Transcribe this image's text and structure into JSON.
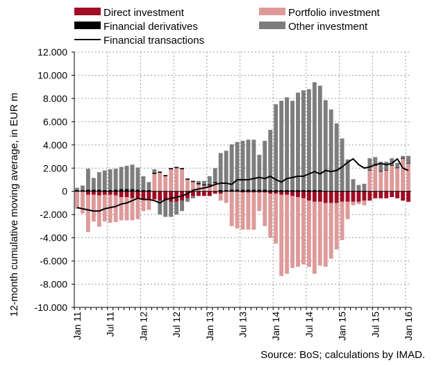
{
  "chart_data": {
    "type": "bar",
    "stacked": true,
    "ylabel": "12-month cumulative moving average, in EUR m",
    "source": "Source: BoS; calculations by IMAD.",
    "ylim": [
      -10000,
      12000
    ],
    "yticks": [
      12000,
      10000,
      8000,
      6000,
      4000,
      2000,
      0,
      -2000,
      -4000,
      -6000,
      -8000,
      -10000
    ],
    "ytick_labels": [
      "12.000",
      "10.000",
      "8.000",
      "6.000",
      "4.000",
      "2.000",
      "0",
      "-2.000",
      "-4.000",
      "-6.000",
      "-8.000",
      "-10.000"
    ],
    "grid": true,
    "legend_position": "top",
    "x": [
      "Jan 11",
      "Feb 11",
      "Mar 11",
      "Apr 11",
      "May 11",
      "Jun 11",
      "Jul 11",
      "Aug 11",
      "Sep 11",
      "Oct 11",
      "Nov 11",
      "Dec 11",
      "Jan 12",
      "Feb 12",
      "Mar 12",
      "Apr 12",
      "May 12",
      "Jun 12",
      "Jul 12",
      "Aug 12",
      "Sep 12",
      "Oct 12",
      "Nov 12",
      "Dec 12",
      "Jan 13",
      "Feb 13",
      "Mar 13",
      "Apr 13",
      "May 13",
      "Jun 13",
      "Jul 13",
      "Aug 13",
      "Sep 13",
      "Oct 13",
      "Nov 13",
      "Dec 13",
      "Jan 14",
      "Feb 14",
      "Mar 14",
      "Apr 14",
      "May 14",
      "Jun 14",
      "Jul 14",
      "Aug 14",
      "Sep 14",
      "Oct 14",
      "Nov 14",
      "Dec 14",
      "Jan 15",
      "Feb 15",
      "Mar 15",
      "Apr 15",
      "May 15",
      "Jun 15",
      "Jul 15",
      "Aug 15",
      "Sep 15",
      "Oct 15",
      "Nov 15",
      "Dec 15",
      "Jan 16"
    ],
    "xtick_labels": [
      {
        "index": 0,
        "label": "Jan 11"
      },
      {
        "index": 6,
        "label": "Jul 11"
      },
      {
        "index": 12,
        "label": "Jan 12"
      },
      {
        "index": 18,
        "label": "Jul 12"
      },
      {
        "index": 24,
        "label": "Jan 13"
      },
      {
        "index": 30,
        "label": "Jul 13"
      },
      {
        "index": 36,
        "label": "Jan 14"
      },
      {
        "index": 42,
        "label": "Jul 14"
      },
      {
        "index": 48,
        "label": "Jan 15"
      },
      {
        "index": 54,
        "label": "Jul 15"
      },
      {
        "index": 60,
        "label": "Jan 16"
      }
    ],
    "series": [
      {
        "name": "Direct investment",
        "color": "#a00d24",
        "kind": "bar",
        "values": [
          0,
          0,
          -300,
          -300,
          -350,
          -300,
          -300,
          -350,
          -500,
          -500,
          -600,
          -600,
          -700,
          -700,
          -700,
          -800,
          -800,
          -900,
          -900,
          -800,
          -600,
          -400,
          -400,
          -400,
          -400,
          -200,
          -200,
          0,
          0,
          0,
          -100,
          -100,
          -100,
          -100,
          -100,
          -200,
          -200,
          -300,
          -300,
          -400,
          -500,
          -600,
          -800,
          -900,
          -900,
          -1000,
          -1000,
          -1000,
          -900,
          -900,
          -900,
          -900,
          -800,
          -800,
          -600,
          -600,
          -600,
          -500,
          -600,
          -800,
          -900
        ]
      },
      {
        "name": "Portfolio investment",
        "color": "#de9a9a",
        "kind": "bar",
        "values": [
          -1500,
          -1900,
          -3200,
          -2300,
          -2700,
          -2300,
          -2400,
          -2300,
          -2000,
          -2000,
          -1900,
          -1800,
          -1000,
          -900,
          1500,
          1600,
          1300,
          1900,
          2000,
          1900,
          1000,
          800,
          600,
          500,
          500,
          700,
          -600,
          -1000,
          -3000,
          -3200,
          -3200,
          -3200,
          -3200,
          -1600,
          -2900,
          -3800,
          -4300,
          -7000,
          -6800,
          -6200,
          -6000,
          -5700,
          -5700,
          -6200,
          -5500,
          -5500,
          -4800,
          -4000,
          -3300,
          -1500,
          -300,
          -200,
          -400,
          1800,
          2200,
          1700,
          1800,
          2200,
          2000,
          2800,
          2400
        ]
      },
      {
        "name": "Financial derivatives",
        "color": "#000000",
        "kind": "bar",
        "values": [
          100,
          100,
          150,
          150,
          150,
          100,
          100,
          150,
          200,
          200,
          200,
          150,
          100,
          100,
          100,
          100,
          100,
          100,
          100,
          100,
          100,
          100,
          100,
          100,
          100,
          100,
          100,
          100,
          150,
          150,
          150,
          150,
          150,
          150,
          150,
          100,
          100,
          100,
          100,
          100,
          100,
          100,
          100,
          100,
          100,
          50,
          50,
          50,
          50,
          50,
          50,
          50,
          50,
          50,
          50,
          50,
          50,
          50,
          50,
          50,
          50
        ]
      },
      {
        "name": "Other investment",
        "color": "#7d7d7d",
        "kind": "bar",
        "values": [
          200,
          400,
          1800,
          1000,
          1500,
          1700,
          1800,
          1800,
          1900,
          2000,
          2100,
          1900,
          1200,
          700,
          300,
          -1200,
          -1400,
          -1300,
          -1100,
          -900,
          -300,
          -200,
          200,
          300,
          700,
          1200,
          3200,
          3400,
          3900,
          4100,
          4200,
          4300,
          4300,
          3000,
          4200,
          5200,
          7400,
          7700,
          8000,
          7700,
          8400,
          8600,
          8700,
          9300,
          9000,
          7800,
          7000,
          5800,
          4500,
          2700,
          1000,
          500,
          600,
          1000,
          700,
          800,
          700,
          600,
          400,
          200,
          600
        ]
      },
      {
        "name": "Financial transactions",
        "color": "#000000",
        "kind": "line",
        "values": [
          -1400,
          -1500,
          -1600,
          -1700,
          -1700,
          -1500,
          -1400,
          -1300,
          -1100,
          -1000,
          -800,
          -600,
          -700,
          -700,
          -800,
          -1000,
          -700,
          -600,
          -500,
          -400,
          -200,
          100,
          200,
          300,
          400,
          600,
          700,
          700,
          600,
          1000,
          1000,
          1000,
          1100,
          1200,
          1100,
          1300,
          1000,
          800,
          1100,
          1200,
          1300,
          1300,
          1500,
          1700,
          1500,
          1800,
          1700,
          1800,
          2100,
          2500,
          2800,
          2300,
          2000,
          2100,
          2300,
          2400,
          2300,
          2400,
          2800,
          2000,
          1800
        ]
      }
    ]
  }
}
